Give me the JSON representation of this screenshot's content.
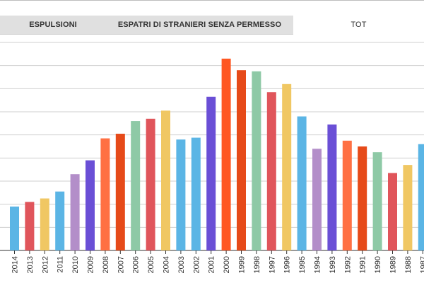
{
  "tabs": [
    {
      "label": "ESPULSIONI",
      "active": false
    },
    {
      "label": "ESPATRI DI STRANIERI SENZA PERMESSO",
      "active": false
    },
    {
      "label": "TOT",
      "active": true
    }
  ],
  "chart_data": {
    "type": "bar",
    "categories": [
      "2014",
      "2013",
      "2012",
      "2011",
      "2010",
      "2009",
      "2008",
      "2007",
      "2006",
      "2005",
      "2004",
      "2003",
      "2002",
      "2001",
      "2000",
      "1999",
      "1998",
      "1997",
      "1996",
      "1995",
      "1994",
      "1993",
      "1992",
      "1991",
      "1990",
      "1989",
      "1988",
      "1987"
    ],
    "values": [
      19,
      21,
      22.5,
      25.5,
      33,
      39,
      48.5,
      50.5,
      56,
      57,
      60.5,
      48,
      48.8,
      66.5,
      83,
      78,
      77.5,
      68.5,
      72,
      58,
      44,
      54.5,
      47.5,
      45,
      42.5,
      33.5,
      37,
      46
    ],
    "colors": [
      "#5bb5e5",
      "#e0555b",
      "#f0c763",
      "#5bb5e5",
      "#b38ec9",
      "#6a4fd6",
      "#ff7043",
      "#e64a19",
      "#8ec9a6",
      "#e0555b",
      "#f0c763",
      "#5bb5e5",
      "#5bb5e5",
      "#6a4fd6",
      "#ff5722",
      "#e64a19",
      "#8ec9a6",
      "#e0555b",
      "#f0c763",
      "#5bb5e5",
      "#b38ec9",
      "#6a4fd6",
      "#ff7043",
      "#e64a19",
      "#8ec9a6",
      "#e0555b",
      "#f0c763",
      "#5bb5e5"
    ],
    "ylim": [
      0,
      90
    ],
    "ytick_step": 10,
    "grid": true,
    "title": "",
    "xlabel": "",
    "ylabel": ""
  }
}
